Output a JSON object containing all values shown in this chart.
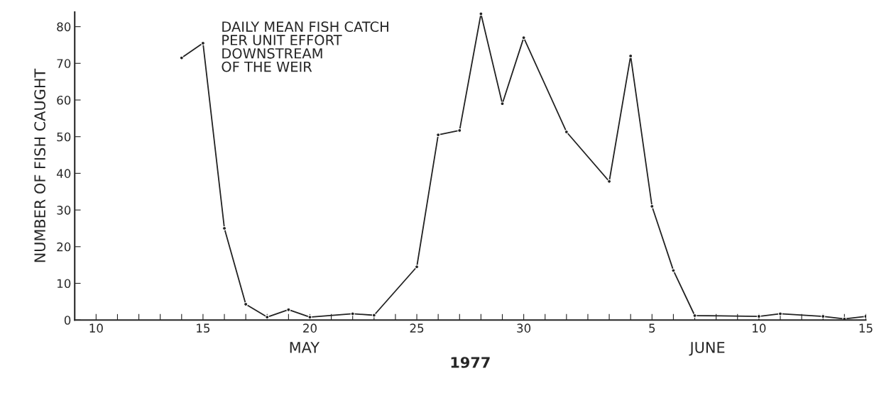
{
  "chart_data": {
    "type": "line",
    "title": "DAILY MEAN FISH CATCH\nPER UNIT EFFORT\nDOWNSTREAM\nOF THE WEIR",
    "ylabel": "NUMBER OF FISH CAUGHT",
    "xlabel": "1977",
    "annotations": [
      "MAY",
      "JUNE"
    ],
    "x": [
      "1977-05-14",
      "1977-05-15",
      "1977-05-16",
      "1977-05-17",
      "1977-05-18",
      "1977-05-19",
      "1977-05-20",
      "1977-05-22",
      "1977-05-23",
      "1977-05-25",
      "1977-05-26",
      "1977-05-27",
      "1977-05-28",
      "1977-05-29",
      "1977-05-30",
      "1977-06-01",
      "1977-06-03",
      "1977-06-04",
      "1977-06-05",
      "1977-06-06",
      "1977-06-07",
      "1977-06-10",
      "1977-06-11",
      "1977-06-13",
      "1977-06-14",
      "1977-06-15"
    ],
    "series": [
      {
        "color": "#222222",
        "values": [
          71.5,
          75.5,
          25,
          4.3,
          0.8,
          2.8,
          0.8,
          1.7,
          1.3,
          14.5,
          50.5,
          51.7,
          83.5,
          59,
          77,
          51.3,
          37.8,
          72,
          31,
          13.5,
          1.2,
          1.0,
          1.7,
          1.0,
          0.3,
          1.0
        ]
      }
    ],
    "marker": "circle",
    "line_style": "solid",
    "grid": false,
    "legend": false,
    "xlim": [
      "1977-05-09",
      "1977-06-15"
    ],
    "ylim": [
      0,
      84
    ],
    "xticks": [
      {
        "value": "1977-05-10",
        "label": "10"
      },
      {
        "value": "1977-05-11",
        "label": null
      },
      {
        "value": "1977-05-12",
        "label": null
      },
      {
        "value": "1977-05-13",
        "label": null
      },
      {
        "value": "1977-05-14",
        "label": null
      },
      {
        "value": "1977-05-15",
        "label": "15"
      },
      {
        "value": "1977-05-16",
        "label": null
      },
      {
        "value": "1977-05-17",
        "label": null
      },
      {
        "value": "1977-05-18",
        "label": null
      },
      {
        "value": "1977-05-19",
        "label": null
      },
      {
        "value": "1977-05-20",
        "label": "20"
      },
      {
        "value": "1977-05-21",
        "label": null
      },
      {
        "value": "1977-05-22",
        "label": null
      },
      {
        "value": "1977-05-23",
        "label": null
      },
      {
        "value": "1977-05-24",
        "label": null
      },
      {
        "value": "1977-05-25",
        "label": "25"
      },
      {
        "value": "1977-05-26",
        "label": null
      },
      {
        "value": "1977-05-27",
        "label": null
      },
      {
        "value": "1977-05-28",
        "label": null
      },
      {
        "value": "1977-05-29",
        "label": null
      },
      {
        "value": "1977-05-30",
        "label": "30"
      },
      {
        "value": "1977-05-31",
        "label": null
      },
      {
        "value": "1977-06-01",
        "label": null
      },
      {
        "value": "1977-06-02",
        "label": null
      },
      {
        "value": "1977-06-03",
        "label": null
      },
      {
        "value": "1977-06-04",
        "label": null
      },
      {
        "value": "1977-06-05",
        "label": "5"
      },
      {
        "value": "1977-06-06",
        "label": null
      },
      {
        "value": "1977-06-07",
        "label": null
      },
      {
        "value": "1977-06-08",
        "label": null
      },
      {
        "value": "1977-06-09",
        "label": null
      },
      {
        "value": "1977-06-10",
        "label": "10"
      },
      {
        "value": "1977-06-11",
        "label": null
      },
      {
        "value": "1977-06-12",
        "label": null
      },
      {
        "value": "1977-06-13",
        "label": null
      },
      {
        "value": "1977-06-14",
        "label": null
      },
      {
        "value": "1977-06-15",
        "label": "15"
      }
    ],
    "yticks": [
      0,
      10,
      20,
      30,
      40,
      50,
      60,
      70,
      80
    ]
  }
}
